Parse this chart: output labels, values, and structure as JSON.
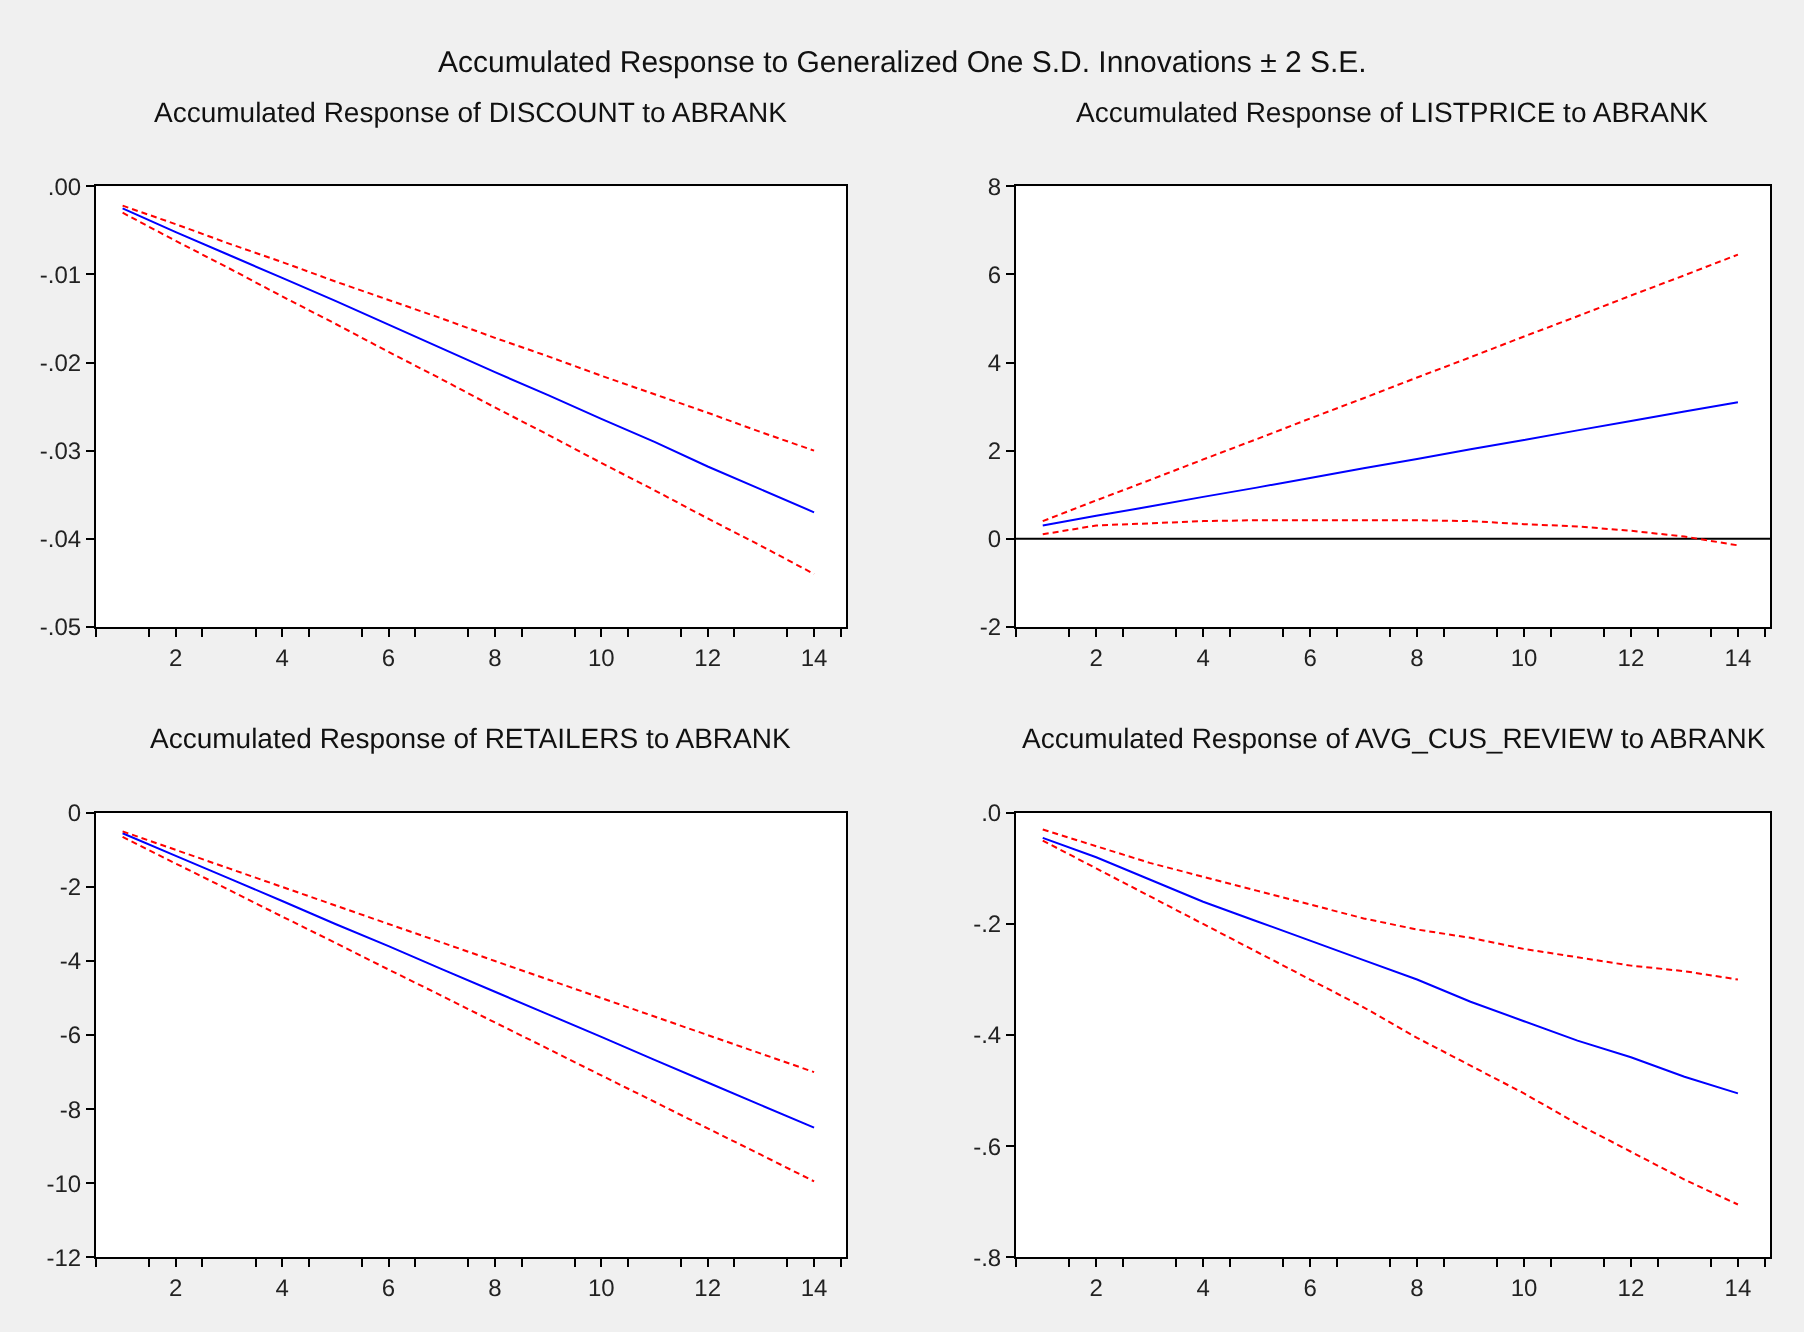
{
  "chart_data": [
    {
      "type": "line",
      "title": "Accumulated Response of DISCOUNT to ABRANK",
      "annotations": [
        "Accumulated Response to Generalized One S.D. Innovations ± 2 S.E."
      ],
      "x": [
        1,
        2,
        3,
        4,
        5,
        6,
        7,
        8,
        9,
        10,
        11,
        12,
        13,
        14
      ],
      "series": [
        {
          "color": "#0000ff",
          "line_style": "solid",
          "values": [
            -0.0025,
            -0.0052,
            -0.0078,
            -0.0104,
            -0.013,
            -0.0157,
            -0.0184,
            -0.0211,
            -0.0237,
            -0.0264,
            -0.029,
            -0.0318,
            -0.0344,
            -0.037
          ]
        },
        {
          "color": "#ff0000",
          "line_style": "dashed",
          "values": [
            -0.0022,
            -0.0043,
            -0.0065,
            -0.0086,
            -0.0108,
            -0.0129,
            -0.015,
            -0.0172,
            -0.0193,
            -0.0215,
            -0.0236,
            -0.0257,
            -0.0279,
            -0.03
          ]
        },
        {
          "color": "#ff0000",
          "line_style": "dashed",
          "values": [
            -0.003,
            -0.0062,
            -0.0093,
            -0.0125,
            -0.0156,
            -0.0188,
            -0.0219,
            -0.0251,
            -0.0282,
            -0.0314,
            -0.0345,
            -0.0377,
            -0.0408,
            -0.044
          ]
        }
      ],
      "xlim": [
        0.5,
        14.6
      ],
      "ylim": [
        -0.05,
        0.0
      ],
      "xticks": [
        {
          "value": 0.5,
          "label": null
        },
        {
          "value": 1.5,
          "label": null
        },
        2,
        {
          "value": 2.5,
          "label": null
        },
        {
          "value": 3.5,
          "label": null
        },
        4,
        {
          "value": 4.5,
          "label": null
        },
        {
          "value": 5.5,
          "label": null
        },
        6,
        {
          "value": 6.5,
          "label": null
        },
        {
          "value": 7.5,
          "label": null
        },
        8,
        {
          "value": 8.5,
          "label": null
        },
        {
          "value": 9.5,
          "label": null
        },
        10,
        {
          "value": 10.5,
          "label": null
        },
        {
          "value": 11.5,
          "label": null
        },
        12,
        {
          "value": 12.5,
          "label": null
        },
        {
          "value": 13.5,
          "label": null
        },
        14,
        {
          "value": 14.5,
          "label": null
        }
      ],
      "yticks": [
        {
          "value": 0,
          "label": ".00"
        },
        {
          "value": -0.01,
          "label": "-.01"
        },
        {
          "value": -0.02,
          "label": "-.02"
        },
        {
          "value": -0.03,
          "label": "-.03"
        },
        {
          "value": -0.04,
          "label": "-.04"
        },
        {
          "value": -0.05,
          "label": "-.05"
        }
      ],
      "grid": false
    },
    {
      "type": "line",
      "title": "Accumulated Response of LISTPRICE to ABRANK",
      "x": [
        1,
        2,
        3,
        4,
        5,
        6,
        7,
        8,
        9,
        10,
        11,
        12,
        13,
        14
      ],
      "series": [
        {
          "color": "#0000ff",
          "line_style": "solid",
          "values": [
            0.3,
            0.52,
            0.73,
            0.95,
            1.16,
            1.38,
            1.6,
            1.81,
            2.03,
            2.24,
            2.46,
            2.67,
            2.89,
            3.1
          ]
        },
        {
          "color": "#ff0000",
          "line_style": "dashed",
          "values": [
            0.4,
            0.87,
            1.33,
            1.8,
            2.26,
            2.73,
            3.19,
            3.66,
            4.12,
            4.59,
            5.05,
            5.52,
            5.98,
            6.45
          ]
        },
        {
          "color": "#ff0000",
          "line_style": "dashed",
          "values": [
            0.1,
            0.3,
            0.35,
            0.4,
            0.42,
            0.42,
            0.42,
            0.42,
            0.4,
            0.33,
            0.28,
            0.18,
            0.05,
            -0.15
          ]
        }
      ],
      "ref_lines": [
        {
          "axis": "y",
          "value": 0,
          "label": null,
          "color": "#000000",
          "line_style": "solid"
        }
      ],
      "xlim": [
        0.5,
        14.6
      ],
      "ylim": [
        -2,
        8
      ],
      "xticks": [
        {
          "value": 0.5,
          "label": null
        },
        {
          "value": 1.5,
          "label": null
        },
        2,
        {
          "value": 2.5,
          "label": null
        },
        {
          "value": 3.5,
          "label": null
        },
        4,
        {
          "value": 4.5,
          "label": null
        },
        {
          "value": 5.5,
          "label": null
        },
        6,
        {
          "value": 6.5,
          "label": null
        },
        {
          "value": 7.5,
          "label": null
        },
        8,
        {
          "value": 8.5,
          "label": null
        },
        {
          "value": 9.5,
          "label": null
        },
        10,
        {
          "value": 10.5,
          "label": null
        },
        {
          "value": 11.5,
          "label": null
        },
        12,
        {
          "value": 12.5,
          "label": null
        },
        {
          "value": 13.5,
          "label": null
        },
        14,
        {
          "value": 14.5,
          "label": null
        }
      ],
      "yticks": [
        -2,
        0,
        2,
        4,
        6,
        8
      ],
      "grid": false
    },
    {
      "type": "line",
      "title": "Accumulated Response of RETAILERS to ABRANK",
      "x": [
        1,
        2,
        3,
        4,
        5,
        6,
        7,
        8,
        9,
        10,
        11,
        12,
        13,
        14
      ],
      "series": [
        {
          "color": "#0000ff",
          "line_style": "solid",
          "values": [
            -0.55,
            -1.16,
            -1.77,
            -2.38,
            -3.0,
            -3.6,
            -4.22,
            -4.83,
            -5.44,
            -6.05,
            -6.67,
            -7.28,
            -7.89,
            -8.5
          ]
        },
        {
          "color": "#ff0000",
          "line_style": "dashed",
          "values": [
            -0.5,
            -1.0,
            -1.5,
            -2.0,
            -2.5,
            -3.0,
            -3.5,
            -4.0,
            -4.5,
            -5.0,
            -5.5,
            -6.0,
            -6.5,
            -7.0
          ]
        },
        {
          "color": "#ff0000",
          "line_style": "dashed",
          "values": [
            -0.65,
            -1.37,
            -2.08,
            -2.8,
            -3.51,
            -4.23,
            -4.94,
            -5.66,
            -6.37,
            -7.09,
            -7.8,
            -8.52,
            -9.23,
            -9.95
          ]
        }
      ],
      "xlim": [
        0.5,
        14.6
      ],
      "ylim": [
        -12,
        0
      ],
      "xticks": [
        {
          "value": 0.5,
          "label": null
        },
        {
          "value": 1.5,
          "label": null
        },
        2,
        {
          "value": 2.5,
          "label": null
        },
        {
          "value": 3.5,
          "label": null
        },
        4,
        {
          "value": 4.5,
          "label": null
        },
        {
          "value": 5.5,
          "label": null
        },
        6,
        {
          "value": 6.5,
          "label": null
        },
        {
          "value": 7.5,
          "label": null
        },
        8,
        {
          "value": 8.5,
          "label": null
        },
        {
          "value": 9.5,
          "label": null
        },
        10,
        {
          "value": 10.5,
          "label": null
        },
        {
          "value": 11.5,
          "label": null
        },
        12,
        {
          "value": 12.5,
          "label": null
        },
        {
          "value": 13.5,
          "label": null
        },
        14,
        {
          "value": 14.5,
          "label": null
        }
      ],
      "yticks": [
        -12,
        -10,
        -8,
        -6,
        -4,
        -2,
        0
      ],
      "grid": false
    },
    {
      "type": "line",
      "title": "Accumulated Response of AVG_CUS_REVIEW to ABRANK",
      "x": [
        1,
        2,
        3,
        4,
        5,
        6,
        7,
        8,
        9,
        10,
        11,
        12,
        13,
        14
      ],
      "series": [
        {
          "color": "#0000ff",
          "line_style": "solid",
          "values": [
            -0.045,
            -0.08,
            -0.12,
            -0.16,
            -0.195,
            -0.23,
            -0.265,
            -0.3,
            -0.34,
            -0.375,
            -0.41,
            -0.44,
            -0.475,
            -0.505
          ]
        },
        {
          "color": "#ff0000",
          "line_style": "dashed",
          "values": [
            -0.03,
            -0.06,
            -0.09,
            -0.115,
            -0.14,
            -0.165,
            -0.19,
            -0.21,
            -0.225,
            -0.245,
            -0.26,
            -0.275,
            -0.285,
            -0.3
          ]
        },
        {
          "color": "#ff0000",
          "line_style": "dashed",
          "values": [
            -0.05,
            -0.1,
            -0.15,
            -0.2,
            -0.25,
            -0.3,
            -0.35,
            -0.405,
            -0.455,
            -0.505,
            -0.56,
            -0.61,
            -0.66,
            -0.705
          ]
        }
      ],
      "xlim": [
        0.5,
        14.6
      ],
      "ylim": [
        -0.8,
        0.0
      ],
      "xticks": [
        {
          "value": 0.5,
          "label": null
        },
        {
          "value": 1.5,
          "label": null
        },
        2,
        {
          "value": 2.5,
          "label": null
        },
        {
          "value": 3.5,
          "label": null
        },
        4,
        {
          "value": 4.5,
          "label": null
        },
        {
          "value": 5.5,
          "label": null
        },
        6,
        {
          "value": 6.5,
          "label": null
        },
        {
          "value": 7.5,
          "label": null
        },
        8,
        {
          "value": 8.5,
          "label": null
        },
        {
          "value": 9.5,
          "label": null
        },
        10,
        {
          "value": 10.5,
          "label": null
        },
        {
          "value": 11.5,
          "label": null
        },
        12,
        {
          "value": 12.5,
          "label": null
        },
        {
          "value": 13.5,
          "label": null
        },
        14,
        {
          "value": 14.5,
          "label": null
        }
      ],
      "yticks": [
        {
          "value": 0,
          "label": ".0"
        },
        {
          "value": -0.2,
          "label": "-.2"
        },
        {
          "value": -0.4,
          "label": "-.4"
        },
        {
          "value": -0.6,
          "label": "-.6"
        },
        {
          "value": -0.8,
          "label": "-.8"
        }
      ],
      "grid": false
    }
  ]
}
